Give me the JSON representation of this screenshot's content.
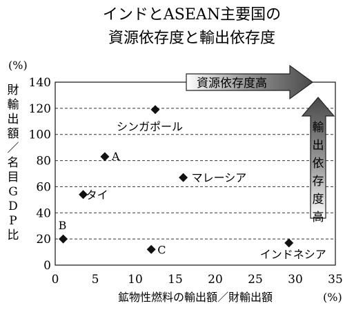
{
  "title_lines": [
    "インドとASEAN主要国の",
    "資源依存度と輸出依存度"
  ],
  "chart_data": {
    "type": "scatter",
    "xlabel": "鉱物性燃料の輸出額／財輸出額",
    "ylabel": "財輸出額／名目GDP比",
    "x_unit": "(%)",
    "y_unit": "(%)",
    "xlim": [
      0,
      35
    ],
    "ylim": [
      0,
      140
    ],
    "x_ticks": [
      0,
      5,
      10,
      15,
      20,
      25,
      30,
      35
    ],
    "y_ticks": [
      0,
      20,
      40,
      60,
      80,
      100,
      120,
      140
    ],
    "grid": "horizontal dashed",
    "points": [
      {
        "label": "シンガポール",
        "x": 12.5,
        "y": 119
      },
      {
        "label": "A",
        "x": 6.2,
        "y": 83
      },
      {
        "label": "マレーシア",
        "x": 16.0,
        "y": 67
      },
      {
        "label": "タイ",
        "x": 3.5,
        "y": 54
      },
      {
        "label": "B",
        "x": 1.0,
        "y": 20
      },
      {
        "label": "C",
        "x": 12.0,
        "y": 12
      },
      {
        "label": "インドネシア",
        "x": 29.2,
        "y": 17
      }
    ],
    "annotations": {
      "horizontal_arrow": "資源依存度高",
      "vertical_arrow": "輸出依存度高"
    }
  }
}
